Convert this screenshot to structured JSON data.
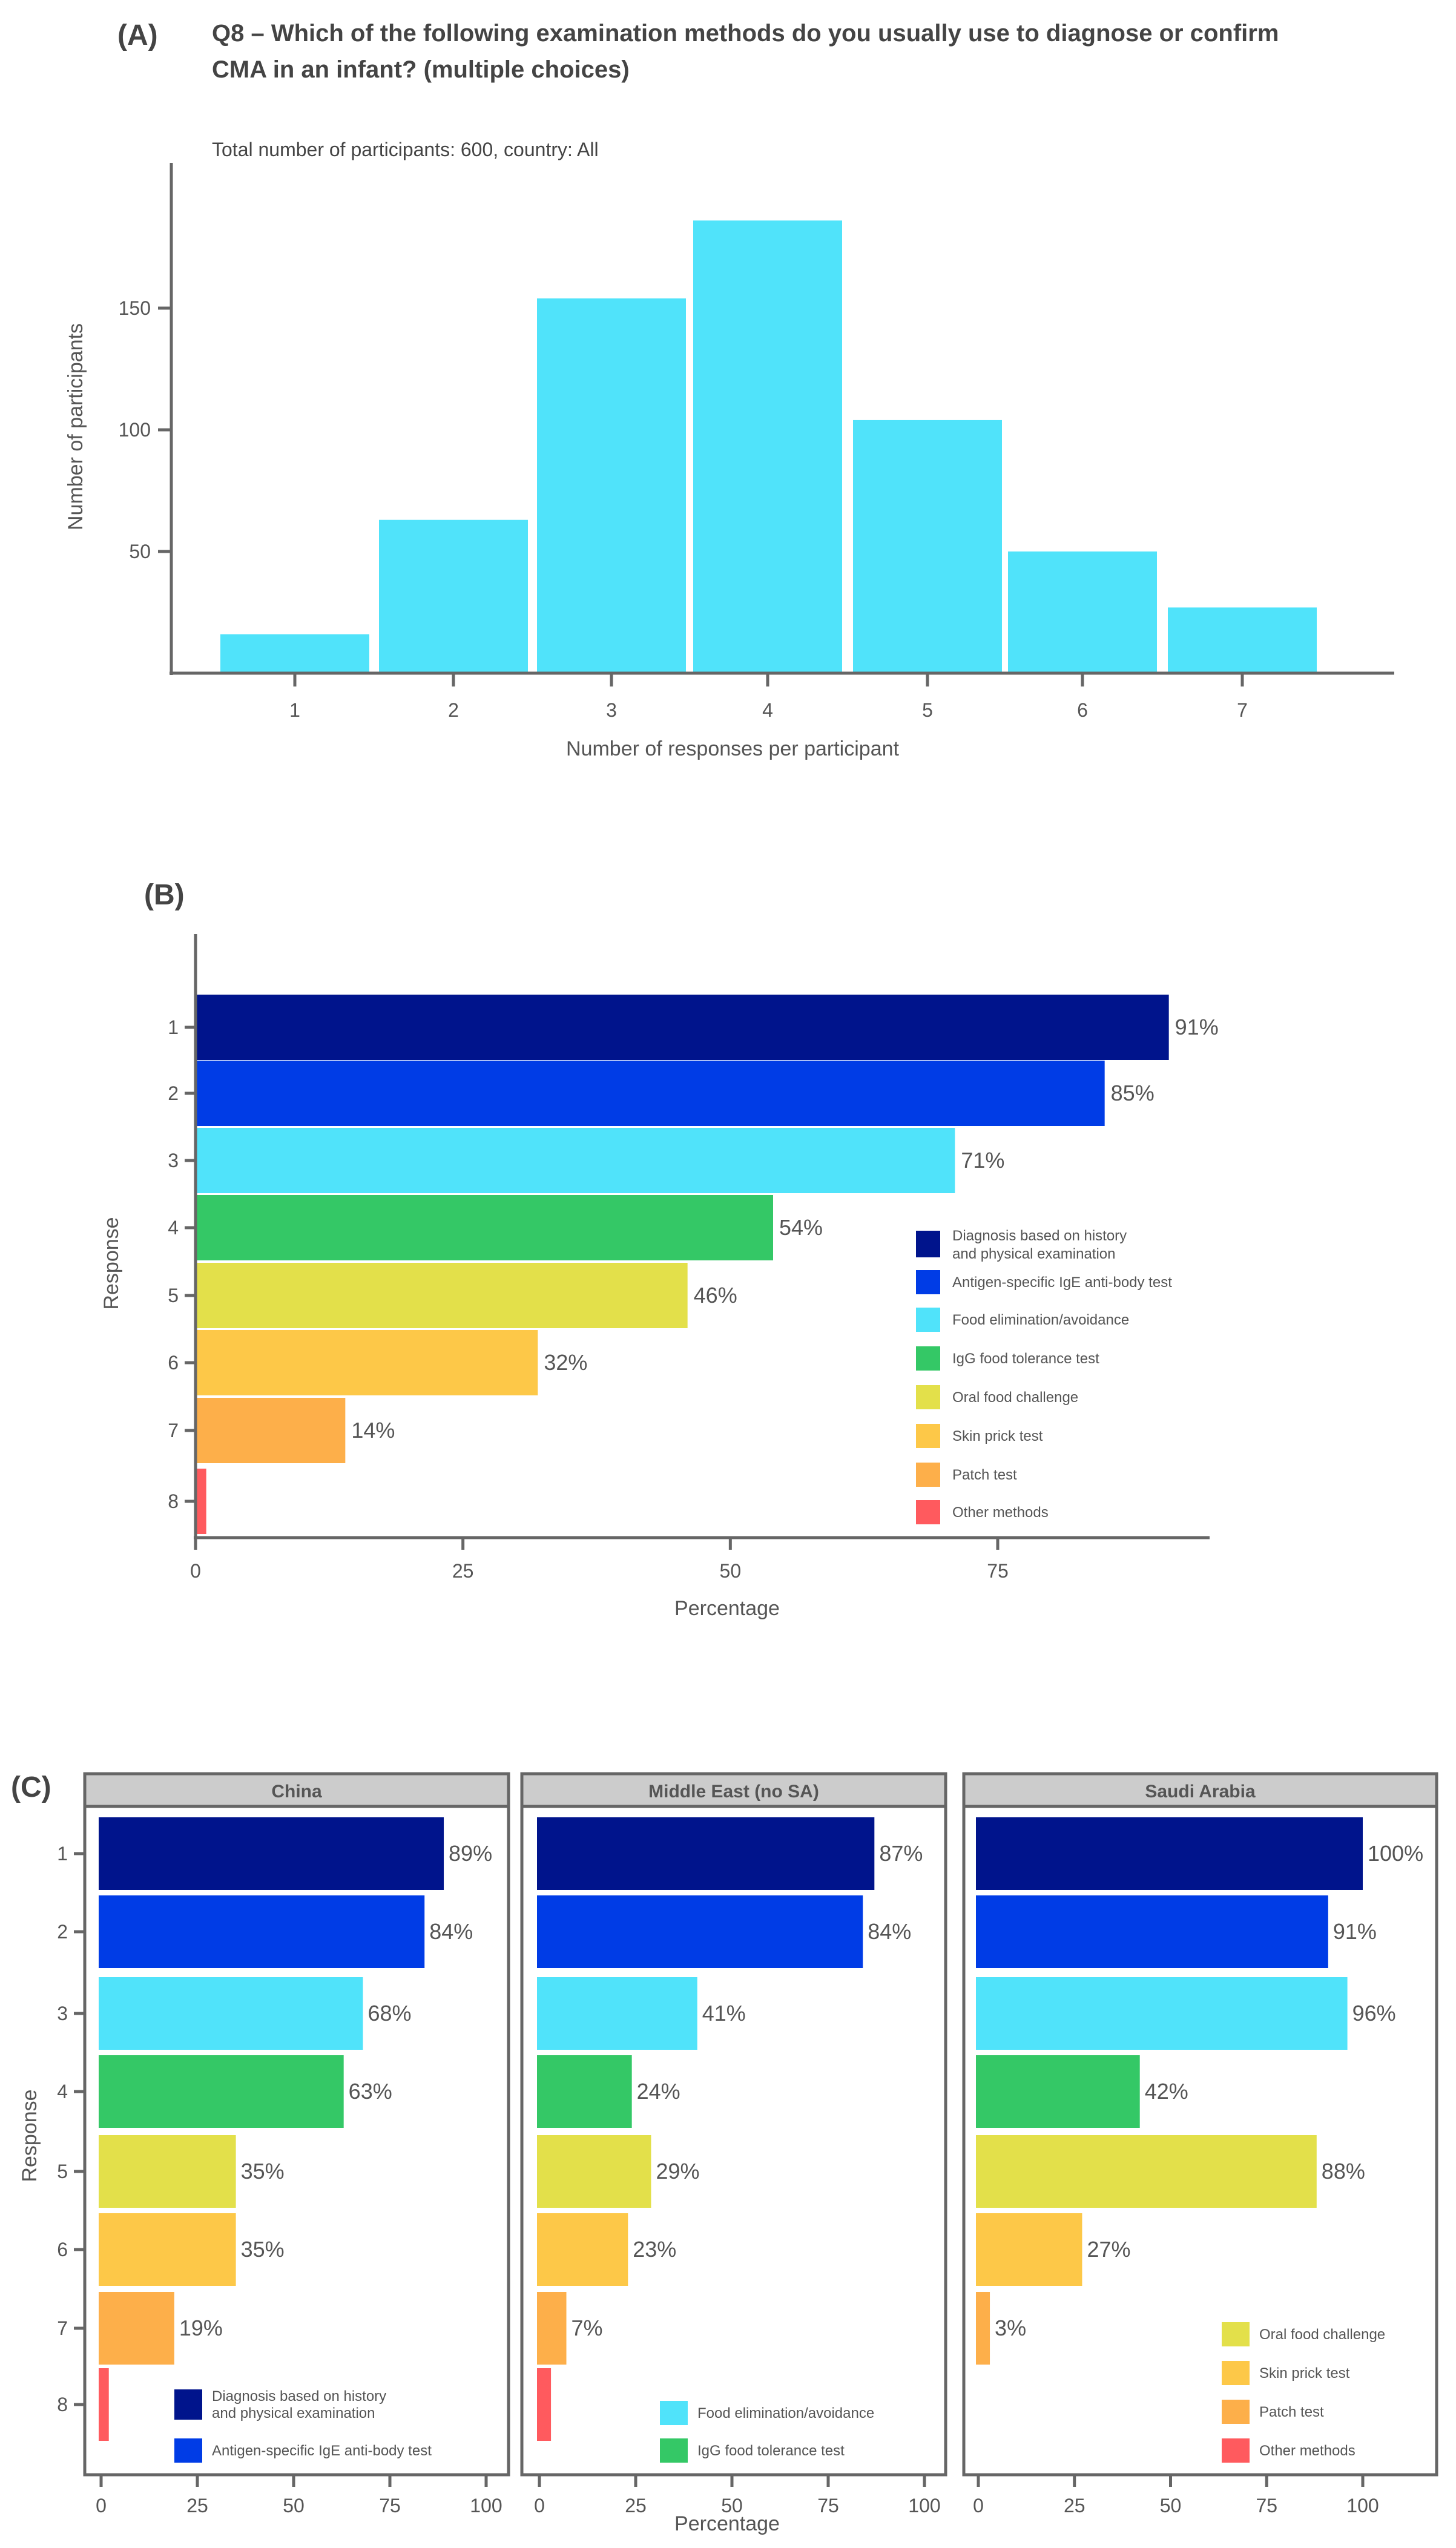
{
  "colors": {
    "histogram": "#50E3FA",
    "axis": "#666666",
    "facet_header": "#CCCCCC",
    "methods": [
      "#00148C",
      "#003CE6",
      "#50E3FA",
      "#34C866",
      "#E3E04A",
      "#FDC848",
      "#FDAF4A",
      "#FF5A5E"
    ]
  },
  "chart_data": [
    {
      "id": "A",
      "panel_label": "(A)",
      "type": "bar",
      "title_lines": [
        "Q8 – Which of the following examination methods do you usually use to diagnose or confirm",
        "CMA in an infant? (multiple choices)"
      ],
      "subtitle": "Total number of participants: 600, country: All",
      "categories": [
        "1",
        "2",
        "3",
        "4",
        "5",
        "6",
        "7"
      ],
      "values": [
        16,
        63,
        154,
        186,
        104,
        50,
        27
      ],
      "xlabel": "Number of responses per participant",
      "ylabel": "Number of participants",
      "yticks": [
        50,
        100,
        150
      ],
      "ylim": [
        0,
        200
      ],
      "grid": false
    },
    {
      "id": "B",
      "panel_label": "(B)",
      "type": "bar",
      "orientation": "horizontal",
      "categories": [
        "1",
        "2",
        "3",
        "4",
        "5",
        "6",
        "7",
        "8"
      ],
      "values": [
        91,
        85,
        71,
        54,
        46,
        32,
        14,
        1
      ],
      "data_labels": [
        "91%",
        "85%",
        "71%",
        "54%",
        "46%",
        "32%",
        "14%",
        ""
      ],
      "xlabel": "Percentage",
      "ylabel": "Response",
      "xticks": [
        0,
        25,
        50,
        75
      ],
      "xlim": [
        0,
        87
      ],
      "legend_position": "bottom-right",
      "legend": [
        "Diagnosis based on history|and physical examination",
        "Antigen-specific IgE anti-body test",
        "Food elimination/avoidance",
        "IgG food tolerance test",
        "Oral food challenge",
        "Skin prick test",
        "Patch test",
        "Other methods"
      ],
      "grid": false
    },
    {
      "id": "C",
      "panel_label": "(C)",
      "type": "bar",
      "orientation": "horizontal",
      "categories": [
        "1",
        "2",
        "3",
        "4",
        "5",
        "6",
        "7",
        "8"
      ],
      "xlabel": "Percentage",
      "ylabel": "Response",
      "xticks": [
        0,
        25,
        50,
        75,
        100
      ],
      "xlim": [
        0,
        100
      ],
      "facets": [
        {
          "name": "China",
          "values": [
            89,
            84,
            68,
            63,
            35,
            35,
            19,
            2
          ],
          "data_labels": [
            "89%",
            "84%",
            "68%",
            "63%",
            "35%",
            "35%",
            "19%",
            ""
          ],
          "legend_items": [
            0,
            1
          ],
          "legend_position": "bottom-right"
        },
        {
          "name": "Middle East (no SA)",
          "values": [
            87,
            84,
            41,
            24,
            29,
            23,
            7,
            3
          ],
          "data_labels": [
            "87%",
            "84%",
            "41%",
            "24%",
            "29%",
            "23%",
            "7%",
            ""
          ],
          "legend_items": [
            2,
            3
          ],
          "legend_position": "bottom-right"
        },
        {
          "name": "Saudi Arabia",
          "values": [
            100,
            91,
            96,
            42,
            88,
            27,
            3,
            0
          ],
          "data_labels": [
            "100%",
            "91%",
            "96%",
            "42%",
            "88%",
            "27%",
            "3%",
            ""
          ],
          "legend_items": [
            4,
            5,
            6,
            7
          ],
          "legend_position": "bottom-right"
        }
      ],
      "grid": false
    }
  ]
}
